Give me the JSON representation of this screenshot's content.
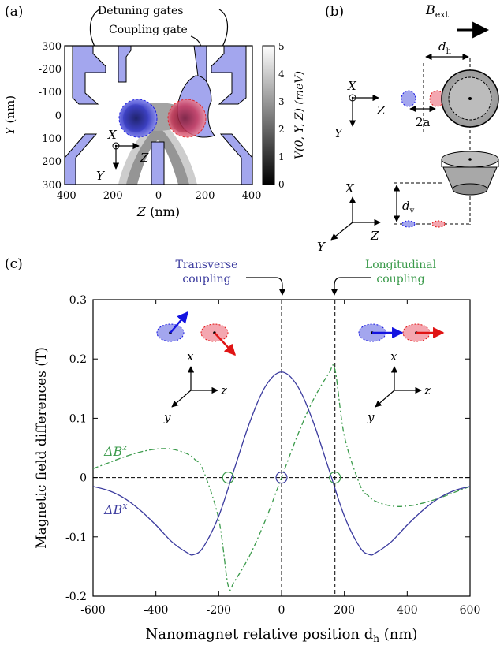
{
  "panel_a": {
    "label": "(a)",
    "annotation_detuning": "Detuning gates",
    "annotation_coupling": "Coupling gate",
    "ylabel_var": "Y",
    "ylabel_unit": "(nm)",
    "xlabel_var": "Z",
    "xlabel_unit": "(nm)",
    "x_ticks": [
      "-400",
      "-200",
      "0",
      "200",
      "400"
    ],
    "y_ticks": [
      "-300",
      "-200",
      "-100",
      "0",
      "100",
      "200",
      "300"
    ],
    "colorbar_label": "V(0, Y, Z)  (meV)",
    "colorbar_ticks": [
      "0",
      "1",
      "2",
      "3",
      "4",
      "5"
    ],
    "axis_x": "X",
    "axis_z": "Z",
    "axis_y": "Y",
    "gate_color": "#a3a6ee",
    "dot_blue": "#3b3fcc",
    "dot_red": "#e03a4e"
  },
  "panel_b": {
    "label": "(b)",
    "bext": "B",
    "bext_sub": "ext",
    "dh": "d",
    "dh_sub": "h",
    "two_a": "2a",
    "dv": "d",
    "dv_sub": "v",
    "axis_x": "X",
    "axis_z": "Z",
    "axis_y": "Y"
  },
  "panel_c": {
    "label": "(c)",
    "annotation_transverse": [
      "Transverse",
      "coupling"
    ],
    "annotation_longitudinal": [
      "Longitudinal",
      "coupling"
    ],
    "ylabel": "Magnetic field differences (T)",
    "xlabel": "Nanomagnet relative position d",
    "xlabel_sub": "h",
    "xlabel_unit": "(nm)",
    "legend_bz": "ΔB",
    "legend_bz_sup": "z",
    "legend_bx": "ΔB",
    "legend_bx_sup": "x",
    "axis_x": "x",
    "axis_y": "y",
    "axis_z": "z",
    "color_bx": "#3a3a9e",
    "color_bz": "#3a9a4a",
    "x_tick_labels": [
      "-600",
      "-400",
      "-200",
      "0",
      "200",
      "400",
      "600"
    ],
    "y_tick_labels": [
      "0.3",
      "0.2",
      "0.1",
      "0",
      "-0.1",
      "-0.2"
    ]
  },
  "chart_data": {
    "type": "line",
    "xlabel": "Nanomagnet relative position d_h (nm)",
    "ylabel": "Magnetic field differences (T)",
    "xlim": [
      -600,
      600
    ],
    "ylim": [
      -0.2,
      0.3
    ],
    "x_ticks": [
      -600,
      -400,
      -200,
      0,
      200,
      400,
      600
    ],
    "y_ticks": [
      0.3,
      0.2,
      0.1,
      0,
      -0.1,
      -0.2
    ],
    "series": [
      {
        "name": "ΔB^x",
        "x": [
          -600,
          -550,
          -500,
          -450,
          -400,
          -350,
          -300,
          -280,
          -250,
          -200,
          -150,
          -100,
          -50,
          0,
          50,
          100,
          150,
          200,
          250,
          280,
          300,
          350,
          400,
          450,
          500,
          550,
          600
        ],
        "values": [
          -0.015,
          -0.022,
          -0.035,
          -0.055,
          -0.08,
          -0.108,
          -0.127,
          -0.13,
          -0.118,
          -0.065,
          0.015,
          0.095,
          0.155,
          0.178,
          0.155,
          0.095,
          0.015,
          -0.065,
          -0.118,
          -0.13,
          -0.127,
          -0.108,
          -0.08,
          -0.055,
          -0.035,
          -0.022,
          -0.015
        ]
      },
      {
        "name": "ΔB^z",
        "x": [
          -600,
          -550,
          -500,
          -450,
          -400,
          -350,
          -300,
          -275,
          -250,
          -200,
          -170,
          -150,
          -100,
          -50,
          0,
          50,
          100,
          150,
          170,
          200,
          250,
          275,
          300,
          350,
          400,
          450,
          500,
          550,
          600
        ],
        "values": [
          0.015,
          0.025,
          0.035,
          0.043,
          0.048,
          0.048,
          0.04,
          0.03,
          0.013,
          -0.07,
          -0.182,
          -0.175,
          -0.13,
          -0.07,
          0.0,
          0.07,
          0.13,
          0.175,
          0.182,
          0.07,
          -0.013,
          -0.03,
          -0.04,
          -0.048,
          -0.048,
          -0.043,
          -0.035,
          -0.025,
          -0.015
        ]
      }
    ],
    "zero_crossings_marked": [
      -170,
      0,
      170
    ],
    "vertical_dashed_lines": [
      0,
      170
    ],
    "horizontal_dashed_line": 0
  }
}
